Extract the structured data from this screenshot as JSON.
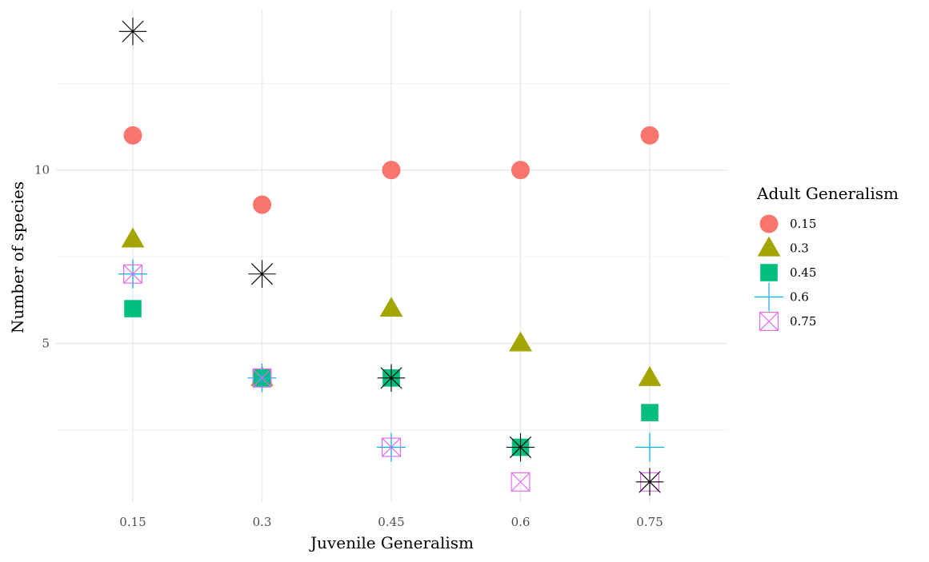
{
  "chart_data": {
    "type": "scatter",
    "xlabel": "Juvenile Generalism",
    "ylabel": "Number of species",
    "x_categories": [
      "0.15",
      "0.3",
      "0.45",
      "0.6",
      "0.75"
    ],
    "y_ticks": [
      5,
      10
    ],
    "y_tick_labels": [
      "5",
      "10"
    ],
    "ylim": [
      0.4,
      14.7
    ],
    "grid": true,
    "legend_title": "Adult Generalism",
    "legend_position": "right",
    "series": [
      {
        "name": "0.15",
        "shape": "circle",
        "color": "#F8766D",
        "x": [
          "0.15",
          "0.3",
          "0.45",
          "0.6",
          "0.75"
        ],
        "y": [
          11,
          9,
          10,
          10,
          11
        ]
      },
      {
        "name": "0.3",
        "shape": "triangle",
        "color": "#A3A500",
        "x": [
          "0.15",
          "0.3",
          "0.45",
          "0.6",
          "0.75"
        ],
        "y": [
          8,
          4,
          6,
          5,
          4
        ]
      },
      {
        "name": "0.45",
        "shape": "square",
        "color": "#00BF7D",
        "x": [
          "0.15",
          "0.3",
          "0.45",
          "0.6",
          "0.75"
        ],
        "y": [
          6,
          4,
          4,
          2,
          3
        ]
      },
      {
        "name": "0.6",
        "shape": "plus",
        "color": "#00B0F6",
        "x": [
          "0.15",
          "0.3",
          "0.45",
          "0.6",
          "0.75"
        ],
        "y": [
          7,
          4,
          2,
          2,
          2
        ]
      },
      {
        "name": "0.75",
        "shape": "square-x",
        "color": "#E76BF3",
        "x": [
          "0.15",
          "0.3",
          "0.45",
          "0.6",
          "0.75"
        ],
        "y": [
          7,
          4,
          2,
          1,
          1
        ]
      },
      {
        "name": "",
        "shape": "asterisk",
        "color": "#000000",
        "in_legend": false,
        "x": [
          "0.15",
          "0.3",
          "0.45",
          "0.6",
          "0.75"
        ],
        "y": [
          14,
          7,
          4,
          2,
          1
        ]
      }
    ]
  }
}
